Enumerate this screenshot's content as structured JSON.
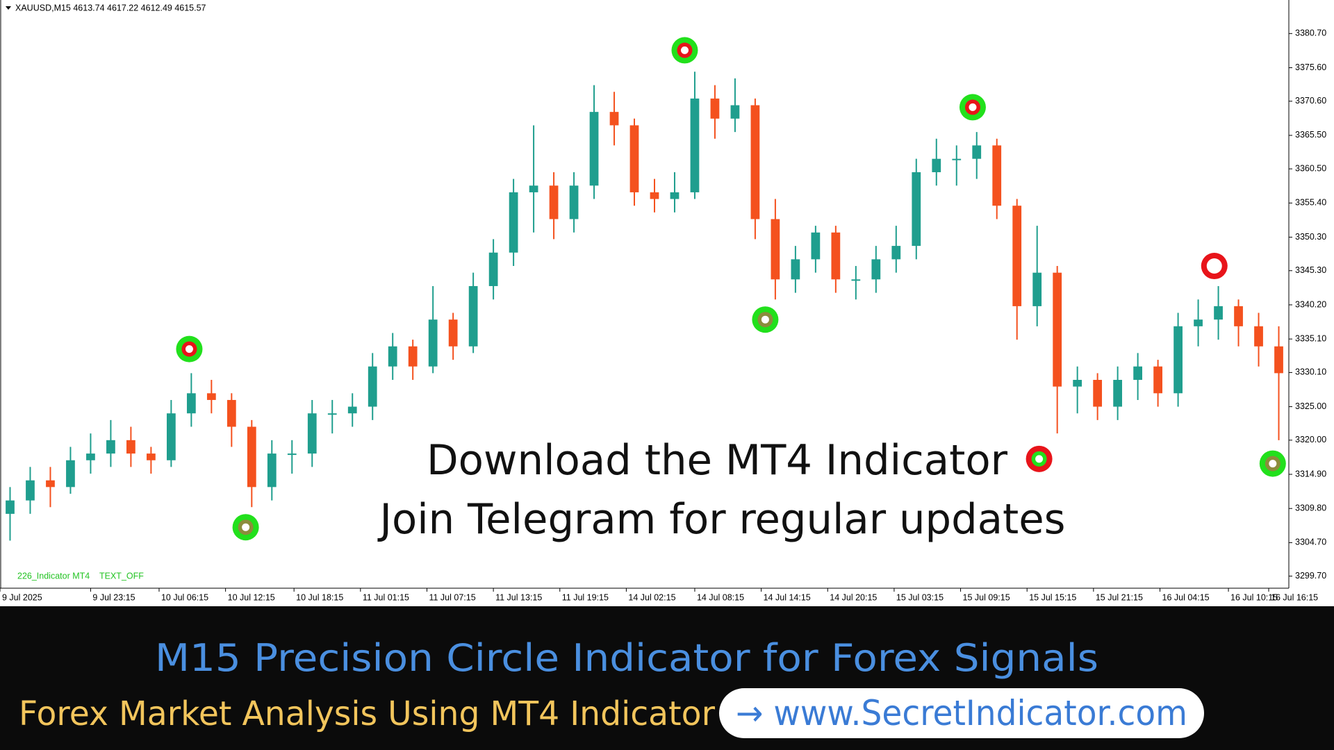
{
  "chart_data": {
    "type": "candlestick",
    "header": "XAUUSD,M15  4613.74 4617.22 4612.49 4615.57",
    "indicator_labels": [
      "226_Indicator MT4",
      "TEXT_OFF"
    ],
    "annotations": [
      "Download the MT4 Indicator",
      "Join Telegram for regular updates"
    ],
    "up_color": "#1f9e8e",
    "down_color": "#f4511e",
    "open": [
      3309,
      3311,
      3314,
      3313,
      3317,
      3318,
      3320,
      3318,
      3317,
      3324,
      3327,
      3326,
      3322,
      3313,
      3318,
      3318,
      3324,
      3324,
      3325,
      3331,
      3334,
      3331,
      3338,
      3334,
      3343,
      3348,
      3357,
      3358,
      3353,
      3358,
      3369,
      3367,
      3357,
      3356,
      3357,
      3371,
      3368,
      3370,
      3353,
      3344,
      3347,
      3351,
      3344,
      3344,
      3347,
      3349,
      3360,
      3362,
      3362,
      3364,
      3355,
      3340,
      3345,
      3328,
      3329,
      3325,
      3329,
      3331,
      3327,
      3337,
      3338,
      3340,
      3337,
      3334
    ],
    "high": [
      3313,
      3316,
      3316,
      3319,
      3321,
      3323,
      3322,
      3319,
      3326,
      3330,
      3329,
      3327,
      3323,
      3320,
      3320,
      3326,
      3326,
      3327,
      3333,
      3336,
      3335,
      3343,
      3339,
      3345,
      3350,
      3359,
      3367,
      3360,
      3360,
      3373,
      3372,
      3368,
      3359,
      3360,
      3375,
      3373,
      3374,
      3371,
      3356,
      3349,
      3352,
      3352,
      3346,
      3349,
      3352,
      3362,
      3365,
      3364,
      3366,
      3365,
      3356,
      3352,
      3346,
      3331,
      3330,
      3331,
      3333,
      3332,
      3339,
      3341,
      3343,
      3341,
      3339,
      3337
    ],
    "low": [
      3305,
      3309,
      3310,
      3312,
      3315,
      3316,
      3316,
      3315,
      3316,
      3322,
      3324,
      3319,
      3310,
      3311,
      3315,
      3316,
      3321,
      3322,
      3323,
      3329,
      3329,
      3330,
      3332,
      3333,
      3341,
      3346,
      3351,
      3350,
      3351,
      3356,
      3364,
      3355,
      3354,
      3354,
      3356,
      3365,
      3366,
      3350,
      3341,
      3342,
      3345,
      3342,
      3341,
      3342,
      3345,
      3347,
      3358,
      3358,
      3359,
      3353,
      3335,
      3337,
      3321,
      3324,
      3323,
      3323,
      3326,
      3325,
      3325,
      3334,
      3335,
      3334,
      3331,
      3320
    ],
    "close": [
      3311,
      3314,
      3313,
      3317,
      3318,
      3320,
      3318,
      3317,
      3324,
      3327,
      3326,
      3322,
      3313,
      3318,
      3318,
      3324,
      3324,
      3325,
      3331,
      3334,
      3331,
      3338,
      3334,
      3343,
      3348,
      3357,
      3358,
      3353,
      3358,
      3369,
      3367,
      3357,
      3356,
      3357,
      3371,
      3368,
      3370,
      3353,
      3344,
      3347,
      3351,
      3344,
      3344,
      3347,
      3349,
      3360,
      3362,
      3362,
      3364,
      3355,
      3340,
      3345,
      3328,
      3329,
      3325,
      3329,
      3331,
      3327,
      3337,
      3338,
      3340,
      3337,
      3334,
      3330
    ],
    "signals": [
      {
        "x": 9.4,
        "y": 3333.6,
        "outer": "#22e01c",
        "inner": "#e8141a"
      },
      {
        "x": 12.2,
        "y": 3307.0,
        "outer": "#22e01c",
        "inner": "#8c8c3c"
      },
      {
        "x": 34.0,
        "y": 3378.2,
        "outer": "#22e01c",
        "inner": "#e8141a"
      },
      {
        "x": 38.0,
        "y": 3338.0,
        "outer": "#22e01c",
        "inner": "#8c8c3c"
      },
      {
        "x": 48.3,
        "y": 3369.7,
        "outer": "#22e01c",
        "inner": "#e8141a"
      },
      {
        "x": 51.6,
        "y": 3317.2,
        "outer": "#e8141a",
        "inner": "#22e01c"
      },
      {
        "x": 60.3,
        "y": 3346.0,
        "outer": "#e8141a",
        "inner": "#ffffff"
      },
      {
        "x": 63.2,
        "y": 3316.5,
        "outer": "#22e01c",
        "inner": "#8c8c3c"
      }
    ],
    "xlim": [
      0,
      64
    ],
    "xticks": [
      {
        "value": 0,
        "label": "9 Jul 2025"
      },
      {
        "value": 4.5,
        "label": "9 Jul 23:15"
      },
      {
        "value": 7.9,
        "label": "10 Jul 06:15"
      },
      {
        "value": 11.2,
        "label": "10 Jul 12:15"
      },
      {
        "value": 14.6,
        "label": "10 Jul 18:15"
      },
      {
        "value": 17.9,
        "label": "11 Jul 01:15"
      },
      {
        "value": 21.2,
        "label": "11 Jul 07:15"
      },
      {
        "value": 24.5,
        "label": "11 Jul 13:15"
      },
      {
        "value": 27.8,
        "label": "11 Jul 19:15"
      },
      {
        "value": 31.1,
        "label": "14 Jul 02:15"
      },
      {
        "value": 34.5,
        "label": "14 Jul 08:15"
      },
      {
        "value": 37.8,
        "label": "14 Jul 14:15"
      },
      {
        "value": 41.1,
        "label": "14 Jul 20:15"
      },
      {
        "value": 44.4,
        "label": "15 Jul 03:15"
      },
      {
        "value": 47.7,
        "label": "15 Jul 09:15"
      },
      {
        "value": 51.0,
        "label": "15 Jul 15:15"
      },
      {
        "value": 54.3,
        "label": "15 Jul 21:15"
      },
      {
        "value": 57.6,
        "label": "16 Jul 04:15"
      },
      {
        "value": 61.0,
        "label": "16 Jul 10:15"
      },
      {
        "value": 63.0,
        "label": "16 Jul 16:15"
      }
    ],
    "ylim": [
      3297.9,
      3385.5
    ],
    "yticks": [
      {
        "value": 3299.7,
        "label": "3299.70"
      },
      {
        "value": 3304.7,
        "label": "3304.70"
      },
      {
        "value": 3309.8,
        "label": "3309.80"
      },
      {
        "value": 3314.9,
        "label": "3314.90"
      },
      {
        "value": 3320.0,
        "label": "3320.00"
      },
      {
        "value": 3325.0,
        "label": "3325.00"
      },
      {
        "value": 3330.1,
        "label": "3330.10"
      },
      {
        "value": 3335.1,
        "label": "3335.10"
      },
      {
        "value": 3340.2,
        "label": "3340.20"
      },
      {
        "value": 3345.3,
        "label": "3345.30"
      },
      {
        "value": 3350.3,
        "label": "3350.30"
      },
      {
        "value": 3355.4,
        "label": "3355.40"
      },
      {
        "value": 3360.5,
        "label": "3360.50"
      },
      {
        "value": 3365.5,
        "label": "3365.50"
      },
      {
        "value": 3370.6,
        "label": "3370.60"
      },
      {
        "value": 3375.6,
        "label": "3375.60"
      },
      {
        "value": 3380.7,
        "label": "3380.70"
      }
    ]
  },
  "banner": {
    "title": "M15 Precision Circle Indicator for Forex Signals",
    "subtitle": "Forex Market Analysis Using MT4 Indicator",
    "link": "→ www.SecretIndicator.com"
  }
}
